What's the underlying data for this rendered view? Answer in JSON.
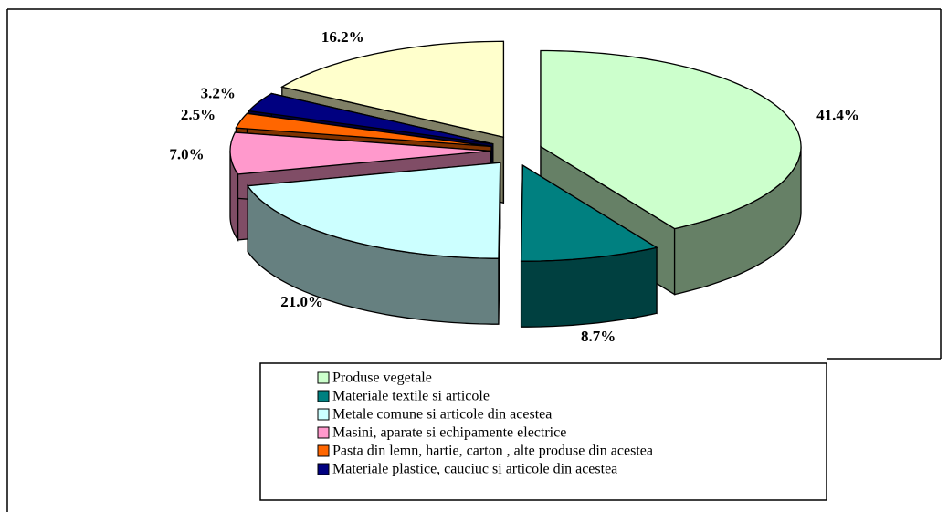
{
  "chart_data": {
    "type": "pie",
    "categories": [
      "Produse vegetale",
      "Materiale textile si articole",
      "Metale comune si articole din acestea",
      "Masini, aparate si echipamente electrice",
      "Pasta din lemn, hartie, carton , alte produse din acestea",
      "Materiale plastice, cauciuc si articole din acestea",
      null
    ],
    "values": [
      41.4,
      8.7,
      21.0,
      7.0,
      2.5,
      3.2,
      16.2
    ],
    "value_labels": [
      "41.4%",
      "8.7%",
      "21.0%",
      "7.0%",
      "2.5%",
      "3.2%",
      "16.2%"
    ],
    "colors": [
      "#ccffcc",
      "#008080",
      "#ccffff",
      "#ff99cc",
      "#ff6600",
      "#000080",
      "#ffffcc"
    ],
    "legend": "bottom"
  }
}
